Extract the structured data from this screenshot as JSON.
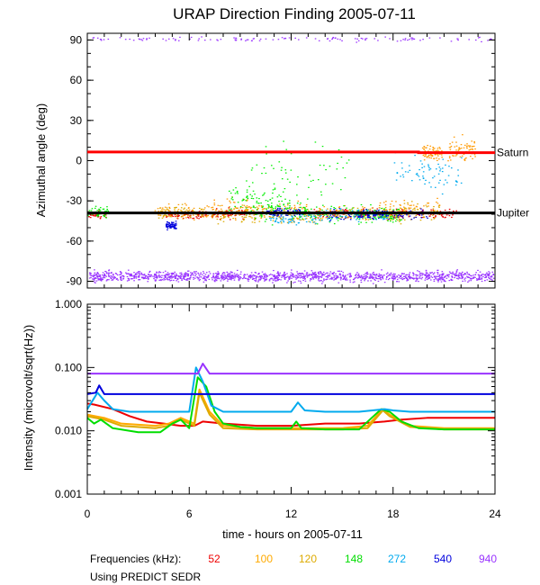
{
  "chart_data": [
    {
      "type": "scatter",
      "title": "URAP Direction Finding  2005-07-11",
      "ylabel": "Azimuthal angle (deg)",
      "xlim": [
        0,
        24
      ],
      "ylim": [
        -95,
        95
      ],
      "yticks": [
        "90",
        "60",
        "30",
        "0",
        "-30",
        "-60",
        "-90"
      ],
      "reference_lines": [
        {
          "name": "Saturn",
          "color": "#ff0000",
          "segments": [
            [
              0,
              6.5
            ],
            [
              19.5,
              6.5
            ],
            [
              19.5,
              6.0
            ],
            [
              24,
              6.0
            ]
          ]
        },
        {
          "name": "Jupiter",
          "color": "#000000",
          "segments": [
            [
              0,
              -39
            ],
            [
              24,
              -39
            ]
          ]
        }
      ],
      "series": [
        {
          "color": "#ee0000",
          "clusters": [
            [
              0.3,
              -40,
              0.8,
              3
            ],
            [
              5.8,
              -40,
              1.2,
              3
            ],
            [
              8.3,
              -39,
              1.0,
              4
            ],
            [
              14.8,
              -39,
              1.5,
              4
            ],
            [
              17.5,
              -39,
              1.5,
              4
            ],
            [
              20.5,
              -39,
              1.2,
              3
            ]
          ]
        },
        {
          "color": "#ff9900",
          "clusters": [
            [
              5.5,
              -38,
              1.6,
              6
            ],
            [
              8.6,
              -36,
              1.5,
              8
            ],
            [
              11.5,
              -38,
              1.5,
              8
            ],
            [
              16.0,
              -40,
              2.5,
              6
            ],
            [
              18.8,
              -35,
              2.0,
              8
            ],
            [
              20.3,
              6,
              0.6,
              6
            ],
            [
              22.0,
              8,
              0.8,
              10
            ]
          ]
        },
        {
          "color": "#ddaa00",
          "clusters": [
            [
              5.5,
              -38,
              1.4,
              5
            ],
            [
              8.8,
              -40,
              1.5,
              7
            ],
            [
              12.3,
              -40,
              1.5,
              8
            ],
            [
              16.5,
              -40,
              2.5,
              7
            ],
            [
              19.0,
              -38,
              1.8,
              8
            ]
          ]
        },
        {
          "color": "#00ee00",
          "clusters": [
            [
              0.5,
              -38,
              0.8,
              4
            ],
            [
              9.8,
              -30,
              1.5,
              15
            ],
            [
              11.6,
              -37,
              1.4,
              8
            ],
            [
              15.5,
              -40,
              2.5,
              7
            ],
            [
              17.0,
              -40,
              1.5,
              6
            ],
            [
              12.5,
              -10,
              3.0,
              25
            ]
          ]
        },
        {
          "color": "#00aaee",
          "clusters": [
            [
              12.2,
              -42,
              1.5,
              6
            ],
            [
              15.7,
              -40,
              2.0,
              5
            ],
            [
              20.0,
              -10,
              2.0,
              15
            ]
          ]
        },
        {
          "color": "#0000dd",
          "clusters": [
            [
              15.5,
              -40,
              2.2,
              4
            ],
            [
              18.0,
              -40,
              2.0,
              4
            ],
            [
              4.9,
              -48,
              0.3,
              3
            ],
            [
              11.5,
              -38,
              1.0,
              3
            ]
          ]
        },
        {
          "color": "#9933ff",
          "clusters": [
            [
              12,
              91,
              11.8,
              2.0
            ],
            [
              12,
              -86,
              11.9,
              4.2
            ]
          ]
        }
      ]
    },
    {
      "type": "line",
      "xlabel": "time - hours on 2005-07-11",
      "ylabel": "Intensity (microvolt/sqrt(Hz))",
      "xlim": [
        0,
        24
      ],
      "ylim": [
        0.001,
        1.0
      ],
      "yscale": "log",
      "xticks": [
        "0",
        "6",
        "12",
        "18",
        "24"
      ],
      "yticks": [
        "1.000",
        "0.100",
        "0.010",
        "0.001"
      ],
      "series": [
        {
          "name": "52",
          "color": "#ee0000",
          "x": [
            0,
            0.4,
            1.5,
            2.5,
            3.5,
            4.5,
            5.5,
            6.3,
            6.8,
            8,
            10,
            12,
            14,
            16,
            17.5,
            18.5,
            20,
            21,
            24
          ],
          "y": [
            0.027,
            0.026,
            0.022,
            0.017,
            0.014,
            0.013,
            0.012,
            0.012,
            0.014,
            0.013,
            0.012,
            0.012,
            0.013,
            0.013,
            0.014,
            0.015,
            0.016,
            0.016,
            0.016
          ]
        },
        {
          "name": "100",
          "color": "#ffaa00",
          "x": [
            0,
            1,
            2,
            4,
            4.8,
            5.5,
            6.3,
            6.6,
            7.2,
            8,
            10,
            12,
            15,
            16.5,
            17.4,
            17.8,
            19,
            21,
            24
          ],
          "y": [
            0.018,
            0.016,
            0.013,
            0.012,
            0.013,
            0.016,
            0.013,
            0.045,
            0.02,
            0.012,
            0.011,
            0.011,
            0.011,
            0.012,
            0.022,
            0.018,
            0.012,
            0.011,
            0.011
          ]
        },
        {
          "name": "120",
          "color": "#ddaa00",
          "x": [
            0,
            1,
            2,
            4,
            4.8,
            5.5,
            6.3,
            6.6,
            7.2,
            8,
            10,
            12,
            15,
            16.5,
            17.4,
            17.8,
            19,
            21,
            24
          ],
          "y": [
            0.017,
            0.015,
            0.012,
            0.011,
            0.012,
            0.015,
            0.012,
            0.04,
            0.018,
            0.011,
            0.0105,
            0.0105,
            0.0105,
            0.011,
            0.021,
            0.017,
            0.0115,
            0.0105,
            0.0105
          ]
        },
        {
          "name": "148",
          "color": "#00dd00",
          "x": [
            0,
            0.4,
            0.8,
            1.5,
            3,
            4.3,
            5,
            5.5,
            6,
            6.5,
            7,
            7.5,
            8,
            9,
            10,
            12,
            12.3,
            12.6,
            14,
            16,
            17.3,
            17.8,
            18.5,
            19.5,
            21,
            24
          ],
          "y": [
            0.016,
            0.013,
            0.015,
            0.011,
            0.0095,
            0.0095,
            0.013,
            0.015,
            0.011,
            0.07,
            0.05,
            0.02,
            0.013,
            0.0115,
            0.011,
            0.011,
            0.014,
            0.011,
            0.0105,
            0.0105,
            0.022,
            0.02,
            0.014,
            0.011,
            0.0105,
            0.0105
          ]
        },
        {
          "name": "272",
          "color": "#00aaee",
          "x": [
            0,
            0.6,
            1,
            1.5,
            2.5,
            4,
            5.2,
            6,
            6.4,
            6.8,
            7.3,
            8,
            10,
            12,
            12.4,
            12.8,
            14,
            16,
            17.5,
            18,
            19,
            21,
            24
          ],
          "y": [
            0.022,
            0.04,
            0.03,
            0.022,
            0.02,
            0.02,
            0.02,
            0.02,
            0.1,
            0.06,
            0.025,
            0.02,
            0.02,
            0.02,
            0.028,
            0.021,
            0.02,
            0.02,
            0.022,
            0.021,
            0.02,
            0.02,
            0.02
          ]
        },
        {
          "name": "540",
          "color": "#0000dd",
          "x": [
            0,
            0.5,
            0.7,
            1,
            24
          ],
          "y": [
            0.038,
            0.04,
            0.052,
            0.038,
            0.038
          ]
        },
        {
          "name": "940",
          "color": "#9933ff",
          "x": [
            0,
            6.5,
            6.8,
            7.2,
            24
          ],
          "y": [
            0.08,
            0.08,
            0.115,
            0.08,
            0.08
          ]
        }
      ]
    }
  ],
  "footer": {
    "freq_label": "Frequencies (kHz):",
    "freqs": [
      {
        "label": "52",
        "color": "#ee0000"
      },
      {
        "label": "100",
        "color": "#ffaa00"
      },
      {
        "label": "120",
        "color": "#ddaa00"
      },
      {
        "label": "148",
        "color": "#00dd00"
      },
      {
        "label": "272",
        "color": "#00aaee"
      },
      {
        "label": "540",
        "color": "#0000dd"
      },
      {
        "label": "940",
        "color": "#9933ff"
      }
    ],
    "source_note": "Using PREDICT SEDR"
  }
}
